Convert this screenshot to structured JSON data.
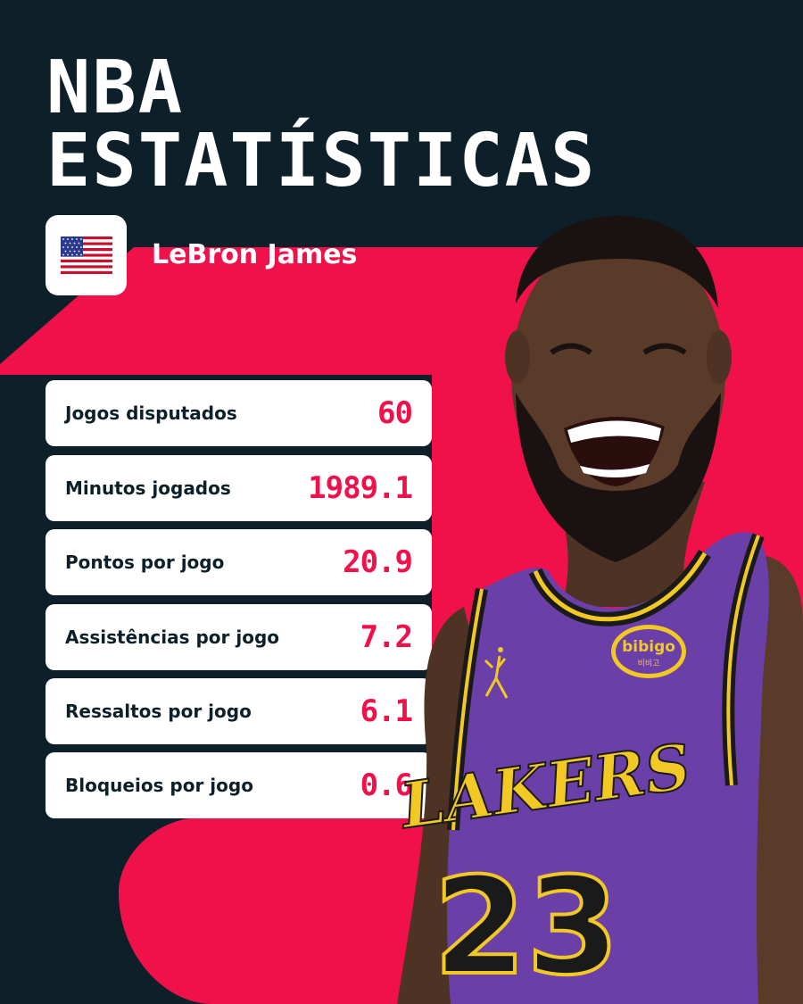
{
  "header": {
    "title_line1": "NBA",
    "title_line2": "ESTATÍSTICAS"
  },
  "player": {
    "name": "LeBron James",
    "flag": "usa-flag",
    "jersey_team": "LAKERS",
    "jersey_number": "23",
    "jersey_sponsor": "bibigo",
    "jersey_sponsor_sub": "비비고"
  },
  "stats": [
    {
      "label": "Jogos disputados",
      "value": "60"
    },
    {
      "label": "Minutos jogados",
      "value": "1989.1"
    },
    {
      "label": "Pontos por jogo",
      "value": "20.9"
    },
    {
      "label": "Assistências por jogo",
      "value": "7.2"
    },
    {
      "label": "Ressaltos por jogo",
      "value": "6.1"
    },
    {
      "label": "Bloqueios por jogo",
      "value": "0.6"
    }
  ],
  "colors": {
    "dark": "#0d1f28",
    "accent": "#f0114a",
    "card": "#ffffff",
    "jersey": "#6b3fa8",
    "jersey_trim": "#f2c824"
  }
}
